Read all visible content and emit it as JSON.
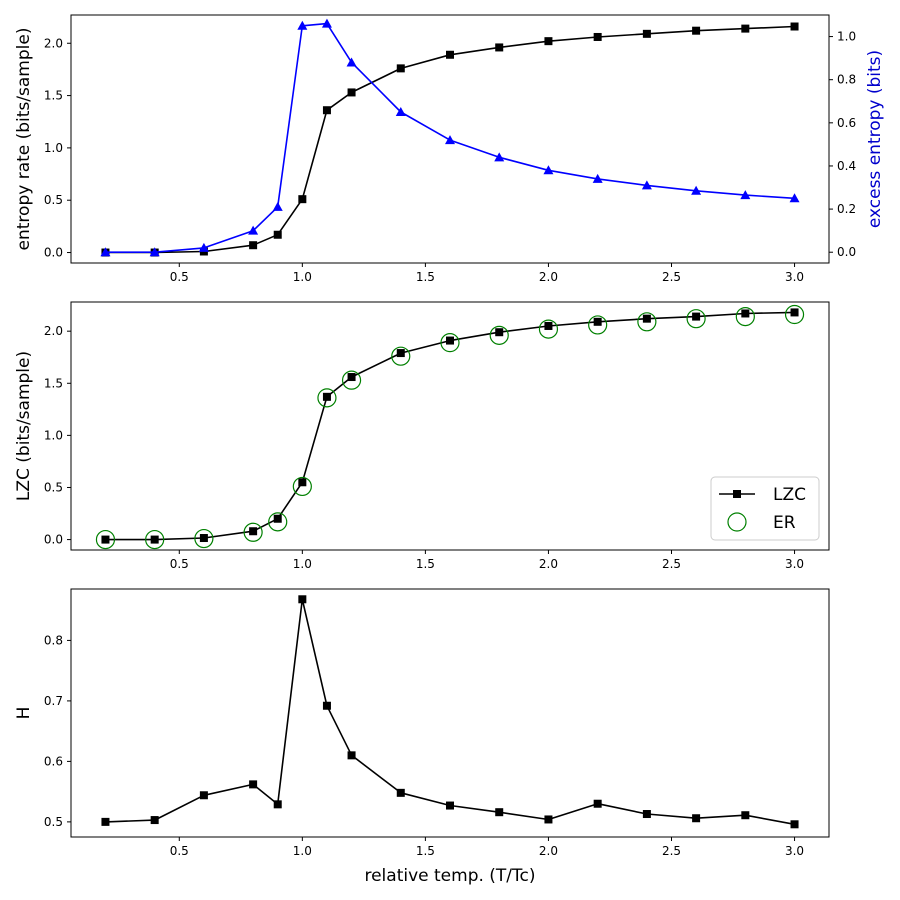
{
  "chart_data": [
    {
      "type": "line",
      "title": "",
      "xlabel": "",
      "ylabel": "entropy rate (bits/sample)",
      "y2label": "excess entropy (bits)",
      "xlim": [
        0.06,
        3.14
      ],
      "ylim": [
        -0.1,
        2.27
      ],
      "y2lim": [
        -0.05,
        1.1
      ],
      "xticks": [
        "0.5",
        "1.0",
        "1.5",
        "2.0",
        "2.5",
        "3.0"
      ],
      "yticks": [
        "0.0",
        "0.5",
        "1.0",
        "1.5",
        "2.0"
      ],
      "y2ticks": [
        "0.0",
        "0.2",
        "0.4",
        "0.6",
        "0.8",
        "1.0"
      ],
      "x": [
        0.2,
        0.4,
        0.6,
        0.8,
        0.9,
        1.0,
        1.1,
        1.2,
        1.4,
        1.6,
        1.8,
        2.0,
        2.2,
        2.4,
        2.6,
        2.8,
        3.0
      ],
      "series": [
        {
          "name": "entropy rate",
          "axis": "left",
          "color": "#000000",
          "marker": "square",
          "values": [
            0.0,
            0.0,
            0.01,
            0.07,
            0.17,
            0.51,
            1.36,
            1.53,
            1.76,
            1.89,
            1.96,
            2.02,
            2.06,
            2.09,
            2.12,
            2.14,
            2.16
          ]
        },
        {
          "name": "excess entropy",
          "axis": "right",
          "color": "#0000ff",
          "marker": "triangle",
          "values": [
            0.0,
            0.0,
            0.02,
            0.1,
            0.21,
            1.05,
            1.06,
            0.88,
            0.65,
            0.52,
            0.44,
            0.38,
            0.34,
            0.31,
            0.285,
            0.265,
            0.25
          ]
        }
      ]
    },
    {
      "type": "line",
      "title": "",
      "xlabel": "",
      "ylabel": "LZC (bits/sample)",
      "xlim": [
        0.06,
        3.14
      ],
      "ylim": [
        -0.1,
        2.28
      ],
      "xticks": [
        "0.5",
        "1.0",
        "1.5",
        "2.0",
        "2.5",
        "3.0"
      ],
      "yticks": [
        "0.0",
        "0.5",
        "1.0",
        "1.5",
        "2.0"
      ],
      "x": [
        0.2,
        0.4,
        0.6,
        0.8,
        0.9,
        1.0,
        1.1,
        1.2,
        1.4,
        1.6,
        1.8,
        2.0,
        2.2,
        2.4,
        2.6,
        2.8,
        3.0
      ],
      "legend": {
        "position": "lower-right",
        "entries": [
          "LZC",
          "ER"
        ]
      },
      "series": [
        {
          "name": "LZC",
          "color": "#000000",
          "marker": "square",
          "line": true,
          "values": [
            0.0,
            0.0,
            0.015,
            0.08,
            0.2,
            0.55,
            1.37,
            1.56,
            1.79,
            1.91,
            1.99,
            2.05,
            2.09,
            2.12,
            2.14,
            2.17,
            2.18
          ]
        },
        {
          "name": "ER",
          "color": "#008000",
          "marker": "open-circle",
          "line": false,
          "values": [
            0.0,
            0.0,
            0.01,
            0.07,
            0.17,
            0.51,
            1.36,
            1.53,
            1.76,
            1.89,
            1.96,
            2.02,
            2.06,
            2.09,
            2.12,
            2.14,
            2.16
          ]
        }
      ]
    },
    {
      "type": "line",
      "title": "",
      "xlabel": "relative temp. (T/Tc)",
      "ylabel": "H",
      "xlim": [
        0.06,
        3.14
      ],
      "ylim": [
        0.475,
        0.885
      ],
      "xticks": [
        "0.5",
        "1.0",
        "1.5",
        "2.0",
        "2.5",
        "3.0"
      ],
      "yticks": [
        "0.5",
        "0.6",
        "0.7",
        "0.8"
      ],
      "x": [
        0.2,
        0.4,
        0.6,
        0.8,
        0.9,
        1.0,
        1.1,
        1.2,
        1.4,
        1.6,
        1.8,
        2.0,
        2.2,
        2.4,
        2.6,
        2.8,
        3.0
      ],
      "series": [
        {
          "name": "H",
          "color": "#000000",
          "marker": "square",
          "values": [
            0.5,
            0.503,
            0.544,
            0.562,
            0.529,
            0.868,
            0.692,
            0.61,
            0.548,
            0.527,
            0.516,
            0.504,
            0.53,
            0.513,
            0.506,
            0.511,
            0.496
          ]
        }
      ]
    }
  ]
}
